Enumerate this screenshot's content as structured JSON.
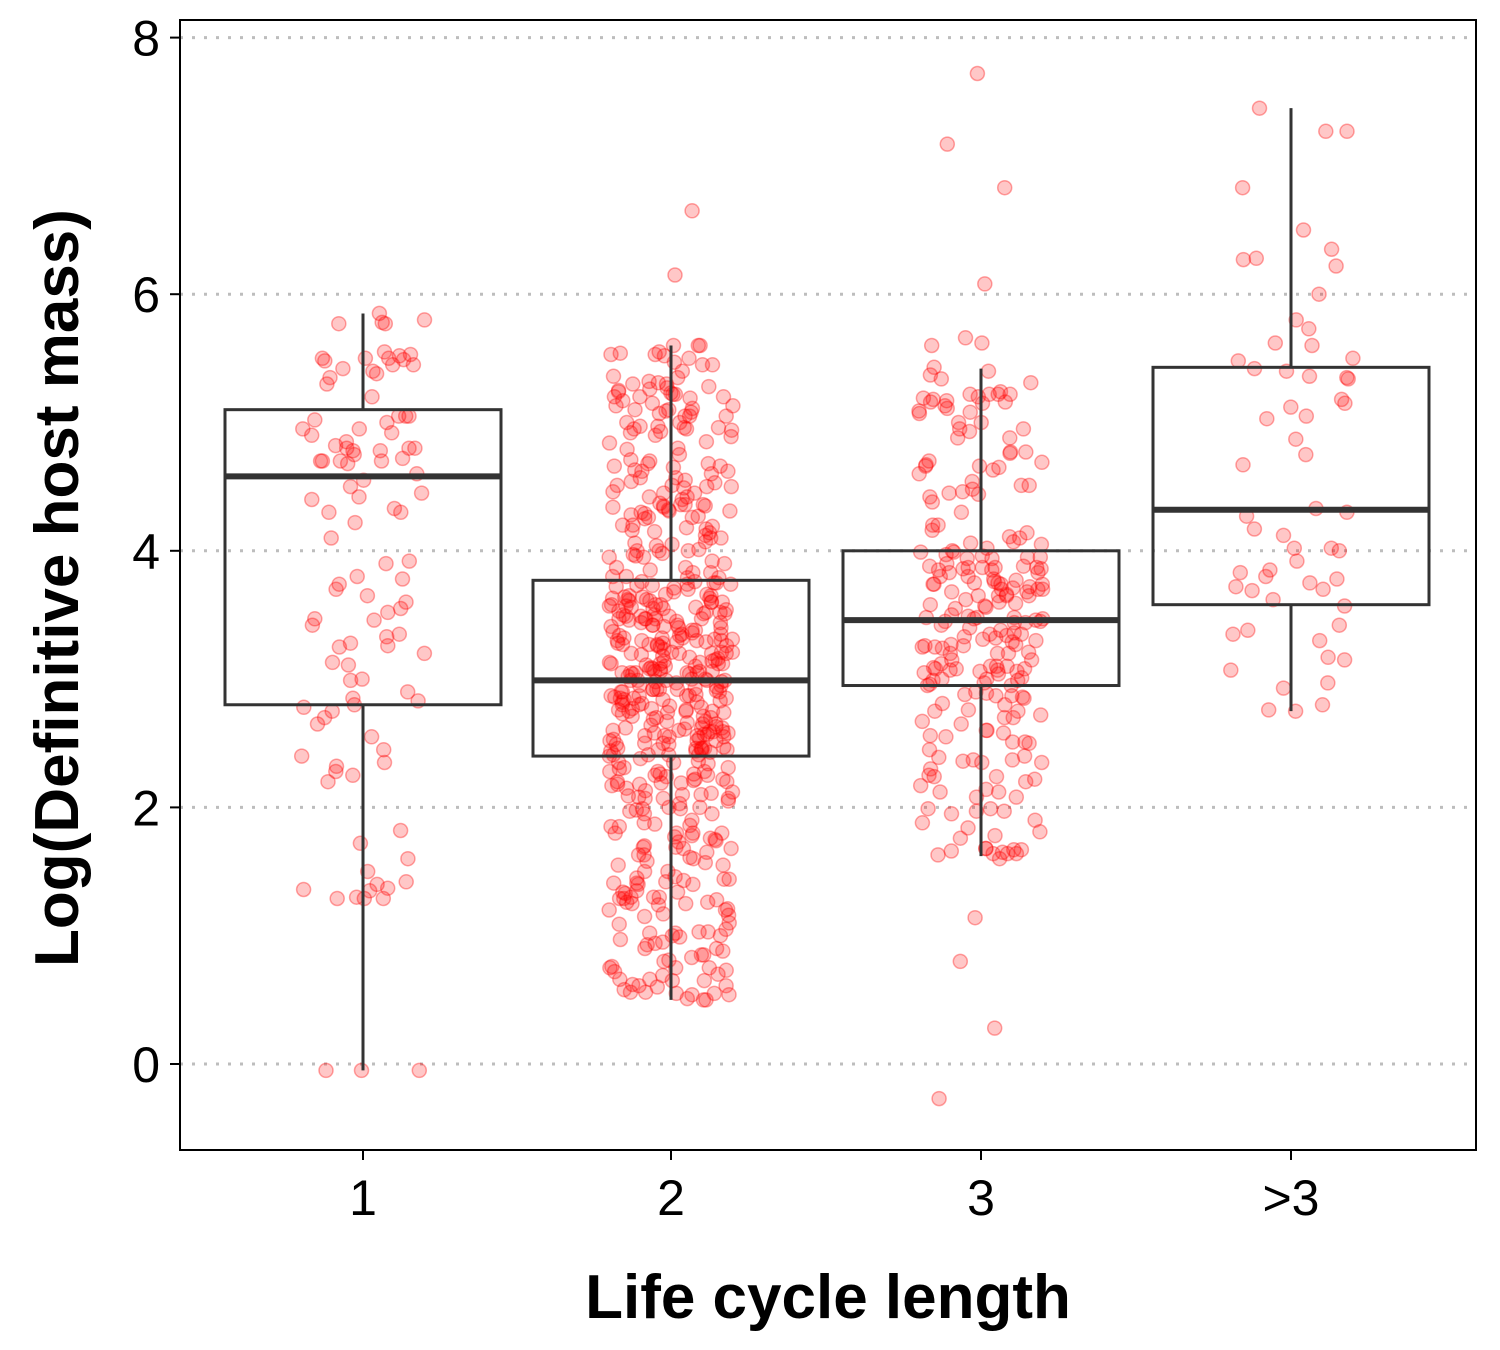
{
  "chart_data": {
    "type": "boxplot",
    "xlabel": "Life cycle length",
    "ylabel": "Log(Definitive host mass)",
    "categories": [
      "1",
      "2",
      "3",
      ">3"
    ],
    "ylim": [
      -0.65,
      8.15
    ],
    "yticks": [
      0,
      2,
      4,
      6,
      8
    ],
    "grid": "horizontal dotted major gridlines",
    "point_color": "#ff0000",
    "box_color": "#333333",
    "boxes": [
      {
        "category": "1",
        "whisker_low": -0.05,
        "q1": 2.8,
        "median": 4.58,
        "q3": 5.1,
        "whisker_high": 5.85
      },
      {
        "category": "2",
        "whisker_low": 0.5,
        "q1": 2.4,
        "median": 2.99,
        "q3": 3.77,
        "whisker_high": 5.6
      },
      {
        "category": "3",
        "whisker_low": 1.62,
        "q1": 2.95,
        "median": 3.46,
        "q3": 4.0,
        "whisker_high": 5.42
      },
      {
        "category": ">3",
        "whisker_low": 2.75,
        "q1": 3.58,
        "median": 4.32,
        "q3": 5.43,
        "whisker_high": 7.45
      }
    ],
    "points": [
      {
        "category": "1",
        "n": 110,
        "y": [
          5.78,
          5.77,
          5.85,
          5.8,
          5.77,
          5.55,
          5.5,
          5.53,
          5.5,
          5.49,
          5.45,
          5.42,
          5.52,
          5.48,
          5.4,
          5.35,
          5.3,
          5.05,
          5.05,
          5.05,
          5.02,
          4.95,
          4.92,
          4.85,
          4.82,
          4.8,
          4.8,
          4.8,
          4.78,
          4.75,
          4.72,
          4.7,
          4.7,
          4.7,
          4.68,
          4.55,
          4.45,
          4.42,
          4.33,
          4.3,
          4.22,
          3.92,
          3.78,
          3.74,
          3.65,
          3.6,
          3.52,
          3.47,
          3.46,
          3.42,
          3.33,
          3.28,
          3.26,
          3.13,
          3.11,
          2.99,
          2.85,
          2.83,
          2.8,
          2.78,
          2.75,
          2.65,
          2.45,
          2.4,
          2.32,
          2.28,
          2.25,
          2.2,
          1.82,
          1.72,
          1.5,
          1.42,
          1.4,
          1.37,
          1.36,
          1.35,
          1.3,
          1.29,
          1.29,
          1.29,
          -0.05,
          -0.05,
          -0.05,
          5.5,
          5.45,
          5.38,
          4.95,
          4.78,
          4.7,
          4.5,
          4.3,
          3.9,
          3.7,
          3.35,
          3.2,
          3.0,
          2.7,
          2.55,
          2.35,
          1.6,
          5.2,
          5.0,
          4.9,
          4.6,
          4.4,
          4.1,
          3.8,
          3.55,
          3.25,
          2.9
        ]
      },
      {
        "category": "2",
        "n": 540,
        "y": [
          6.65,
          6.15,
          5.6,
          5.55,
          5.5,
          5.45,
          5.4,
          5.35,
          5.3,
          5.25,
          5.2,
          5.15,
          5.1,
          5.05,
          5.0,
          4.95,
          4.9,
          4.85,
          4.8,
          4.75,
          4.7,
          4.65,
          4.6,
          4.55,
          4.5,
          4.45,
          4.4,
          4.35,
          4.3,
          4.25,
          4.2,
          4.15,
          4.1,
          4.05,
          4.0,
          3.95,
          3.9,
          3.85,
          3.8,
          3.75,
          3.7,
          3.65,
          3.6,
          3.55,
          3.5,
          3.45,
          3.4,
          3.35,
          3.3,
          3.25,
          3.2,
          3.15,
          3.1,
          3.05,
          3.0,
          2.95,
          2.9,
          2.85,
          2.8,
          2.75,
          2.7,
          2.65,
          2.6,
          2.55,
          2.5,
          2.45,
          2.4,
          2.35,
          2.3,
          2.25,
          2.2,
          2.15,
          2.1,
          2.05,
          2.0,
          1.95,
          1.9,
          1.85,
          1.8,
          1.75,
          1.7,
          1.65,
          1.6,
          1.55,
          1.5,
          1.45,
          1.4,
          1.35,
          1.3,
          1.25,
          1.2,
          1.15,
          1.1,
          1.05,
          1.0,
          0.95,
          0.9,
          0.85,
          0.8,
          0.75,
          0.7,
          0.65,
          0.5
        ]
      },
      {
        "category": "3",
        "n": 250,
        "y": [
          7.72,
          7.17,
          6.83,
          6.08,
          5.66,
          5.62,
          5.6,
          5.43,
          5.22,
          5.2,
          5.15,
          5.08,
          5.0,
          4.95,
          4.95,
          4.88,
          4.7,
          4.65,
          4.48,
          4.45,
          4.38,
          4.3,
          4.2,
          4.1,
          4.05,
          4.0,
          3.95,
          3.9,
          3.85,
          3.8,
          3.75,
          3.7,
          3.65,
          3.6,
          3.55,
          3.5,
          3.45,
          3.4,
          3.35,
          3.3,
          3.25,
          3.2,
          3.15,
          3.1,
          3.05,
          3.0,
          2.95,
          2.9,
          2.85,
          2.8,
          2.75,
          2.7,
          2.65,
          2.6,
          2.55,
          2.5,
          2.45,
          2.4,
          2.35,
          2.3,
          2.25,
          2.2,
          2.12,
          1.95,
          1.88,
          1.65,
          1.6,
          1.14,
          0.8,
          0.28,
          -0.27
        ]
      },
      {
        "category": ">3",
        "n": 60,
        "y": [
          7.45,
          6.83,
          6.5,
          6.35,
          6.27,
          6.22,
          6.0,
          5.62,
          5.6,
          5.5,
          5.48,
          5.42,
          5.4,
          5.35,
          5.18,
          5.15,
          5.12,
          5.05,
          5.03,
          4.75,
          4.67,
          4.33,
          4.3,
          4.02,
          3.92,
          3.85,
          3.83,
          3.78,
          3.75,
          3.72,
          3.7,
          3.62,
          3.42,
          3.38,
          3.35,
          3.3,
          3.17,
          3.15,
          3.07,
          2.97,
          2.8,
          2.75
        ]
      }
    ]
  }
}
